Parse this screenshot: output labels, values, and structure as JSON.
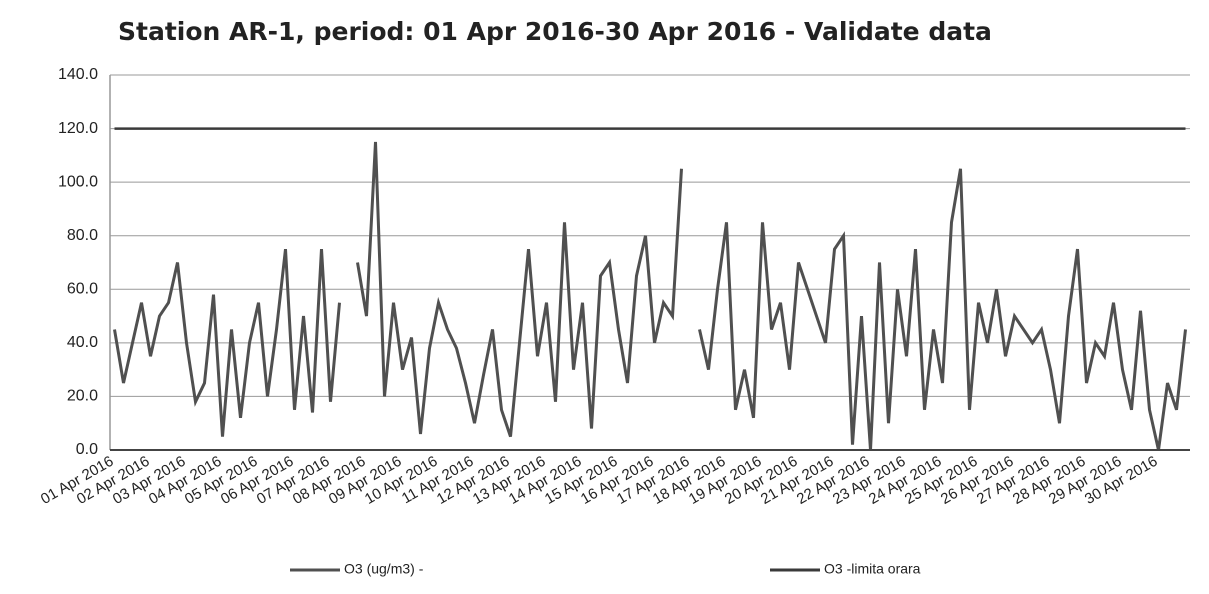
{
  "chart_data": {
    "type": "line",
    "title": "Station AR-1, period: 01 Apr 2016-30 Apr 2016 - Validate data",
    "x": [
      "01 Apr 2016",
      null,
      null,
      null,
      "02 Apr 2016",
      null,
      null,
      null,
      "03 Apr 2016",
      null,
      null,
      null,
      "04 Apr 2016",
      null,
      null,
      null,
      "05 Apr 2016",
      null,
      null,
      null,
      "06 Apr 2016",
      null,
      null,
      null,
      "07 Apr 2016",
      null,
      null,
      null,
      "08 Apr 2016",
      null,
      null,
      null,
      "09 Apr 2016",
      null,
      null,
      null,
      "10 Apr 2016",
      null,
      null,
      null,
      "11 Apr 2016",
      null,
      null,
      null,
      "12 Apr 2016",
      null,
      null,
      null,
      "13 Apr 2016",
      null,
      null,
      null,
      "14 Apr 2016",
      null,
      null,
      null,
      "15 Apr 2016",
      null,
      null,
      null,
      "16 Apr 2016",
      null,
      null,
      null,
      "17 Apr 2016",
      null,
      null,
      null,
      "18 Apr 2016",
      null,
      null,
      null,
      "19 Apr 2016",
      null,
      null,
      null,
      "20 Apr 2016",
      null,
      null,
      null,
      "21 Apr 2016",
      null,
      null,
      null,
      "22 Apr 2016",
      null,
      null,
      null,
      "23 Apr 2016",
      null,
      null,
      null,
      "24 Apr 2016",
      null,
      null,
      null,
      "25 Apr 2016",
      null,
      null,
      null,
      "26 Apr 2016",
      null,
      null,
      null,
      "27 Apr 2016",
      null,
      null,
      null,
      "28 Apr 2016",
      null,
      null,
      null,
      "29 Apr 2016",
      null,
      null,
      null,
      "30 Apr 2016",
      null,
      null,
      null
    ],
    "series": [
      {
        "name": "O3 (ug/m3)  -",
        "color": "#505050",
        "values": [
          45,
          25,
          40,
          55,
          35,
          50,
          55,
          70,
          40,
          18,
          25,
          58,
          5,
          45,
          12,
          40,
          55,
          20,
          45,
          75,
          15,
          50,
          14,
          75,
          18,
          55,
          null,
          70,
          50,
          115,
          20,
          55,
          30,
          42,
          6,
          38,
          55,
          45,
          38,
          25,
          10,
          28,
          45,
          15,
          5,
          40,
          75,
          35,
          55,
          18,
          85,
          30,
          55,
          8,
          65,
          70,
          45,
          25,
          65,
          80,
          40,
          55,
          50,
          105,
          null,
          45,
          30,
          60,
          85,
          15,
          30,
          12,
          85,
          45,
          55,
          30,
          70,
          60,
          50,
          40,
          75,
          80,
          2,
          50,
          0,
          70,
          10,
          60,
          35,
          75,
          15,
          45,
          25,
          85,
          105,
          15,
          55,
          40,
          60,
          35,
          50,
          45,
          40,
          45,
          30,
          10,
          50,
          75,
          25,
          40,
          35,
          55,
          30,
          15,
          52,
          15,
          0,
          25,
          15,
          45
        ]
      },
      {
        "name": "O3 -limita orara",
        "color": "#3a3a3a",
        "values": [
          120,
          120,
          120,
          120,
          120,
          120,
          120,
          120,
          120,
          120,
          120,
          120,
          120,
          120,
          120,
          120,
          120,
          120,
          120,
          120,
          120,
          120,
          120,
          120,
          120,
          120,
          120,
          120,
          120,
          120,
          120,
          120,
          120,
          120,
          120,
          120,
          120,
          120,
          120,
          120,
          120,
          120,
          120,
          120,
          120,
          120,
          120,
          120,
          120,
          120,
          120,
          120,
          120,
          120,
          120,
          120,
          120,
          120,
          120,
          120,
          120,
          120,
          120,
          120,
          120,
          120,
          120,
          120,
          120,
          120,
          120,
          120,
          120,
          120,
          120,
          120,
          120,
          120,
          120,
          120,
          120,
          120,
          120,
          120,
          120,
          120,
          120,
          120,
          120,
          120,
          120,
          120,
          120,
          120,
          120,
          120,
          120,
          120,
          120,
          120,
          120,
          120,
          120,
          120,
          120,
          120,
          120,
          120,
          120,
          120,
          120,
          120,
          120,
          120,
          120,
          120,
          120,
          120,
          120,
          120
        ]
      }
    ],
    "ylim": [
      0,
      140
    ],
    "yticks": [
      {
        "value": 0,
        "label": "0.0"
      },
      {
        "value": 20,
        "label": "20.0"
      },
      {
        "value": 40,
        "label": "40.0"
      },
      {
        "value": 60,
        "label": "60.0"
      },
      {
        "value": 80,
        "label": "80.0"
      },
      {
        "value": 100,
        "label": "100.0"
      },
      {
        "value": 120,
        "label": "120.0"
      },
      {
        "value": 140,
        "label": "140.0"
      }
    ],
    "grid": true
  }
}
